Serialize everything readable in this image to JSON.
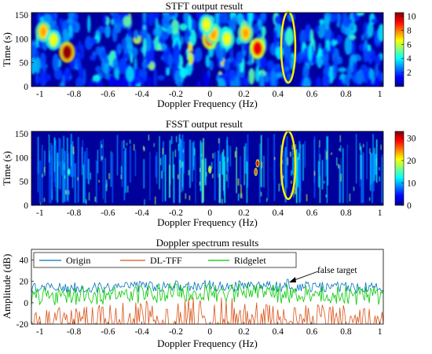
{
  "chart_data": [
    {
      "type": "heatmap",
      "title": "STFT output result",
      "xlabel": "Doppler Frequency (Hz)",
      "ylabel": "Time (s)",
      "xlim": [
        -1.05,
        1.02
      ],
      "ylim": [
        0,
        155
      ],
      "xticks": [
        "-1",
        "-0.8",
        "-0.6",
        "-0.4",
        "-0.2",
        "0",
        "0.2",
        "0.4",
        "0.6",
        "0.8",
        "1"
      ],
      "yticks": [
        "0",
        "50",
        "100",
        "150"
      ],
      "colorbar": {
        "min": 0,
        "max": 10.5,
        "ticks": [
          "2",
          "4",
          "6",
          "8",
          "10"
        ],
        "colormap": "jet"
      },
      "hotspots": [
        {
          "x": -0.84,
          "y": 72,
          "value": 10
        },
        {
          "x": -0.98,
          "y": 115,
          "value": 7
        },
        {
          "x": -0.92,
          "y": 98,
          "value": 6
        },
        {
          "x": 0.0,
          "y": 100,
          "value": 9
        },
        {
          "x": 0.02,
          "y": 110,
          "value": 7
        },
        {
          "x": 0.28,
          "y": 80,
          "value": 9
        },
        {
          "x": 0.21,
          "y": 112,
          "value": 7
        },
        {
          "x": 0.1,
          "y": 100,
          "value": 6
        },
        {
          "x": -0.02,
          "y": 130,
          "value": 6
        }
      ],
      "annotation": {
        "shape": "ellipse",
        "color": "#ffef00",
        "x": 0.46,
        "y": 80
      }
    },
    {
      "type": "heatmap",
      "title": "FSST output result",
      "xlabel": "Doppler Frequency (Hz)",
      "ylabel": "Time (s)",
      "xlim": [
        -1.05,
        1.02
      ],
      "ylim": [
        0,
        155
      ],
      "xticks": [
        "-1",
        "-0.8",
        "-0.6",
        "-0.4",
        "-0.2",
        "0",
        "0.2",
        "0.4",
        "0.6",
        "0.8",
        "1"
      ],
      "yticks": [
        "0",
        "50",
        "100",
        "150"
      ],
      "colorbar": {
        "min": 0,
        "max": 33,
        "ticks": [
          "0",
          "10",
          "20",
          "30"
        ],
        "colormap": "jet"
      },
      "hotspots": [
        {
          "x": 0.28,
          "y": 88,
          "value": 30
        },
        {
          "x": 0.27,
          "y": 70,
          "value": 26
        },
        {
          "x": 0.0,
          "y": 75,
          "value": 22
        },
        {
          "x": -0.83,
          "y": 70,
          "value": 14
        }
      ],
      "annotation": {
        "shape": "ellipse",
        "color": "#ffef00",
        "x": 0.46,
        "y": 80
      }
    },
    {
      "type": "line",
      "title": "Doppler spectrum results",
      "xlabel": "Doppler Frequency (Hz)",
      "ylabel": "Amplitude (dB)",
      "xlim": [
        -1.05,
        1.02
      ],
      "ylim": [
        -20,
        50
      ],
      "xticks": [
        "-1",
        "-0.8",
        "-0.6",
        "-0.4",
        "-0.2",
        "0",
        "0.2",
        "0.4",
        "0.6",
        "0.8",
        "1"
      ],
      "yticks": [
        "-20",
        "0",
        "20",
        "40"
      ],
      "series": [
        {
          "name": "Origin",
          "color": "#0072bd",
          "baseline": 16,
          "amplitude": 5
        },
        {
          "name": "DL-TFF",
          "color": "#d95319",
          "baseline": -20,
          "amplitude": 22
        },
        {
          "name": "Ridgelet",
          "color": "#00c800",
          "baseline": 10,
          "amplitude": 9
        }
      ],
      "annotation": {
        "text": "false target",
        "x": 0.46,
        "y": 22
      }
    }
  ]
}
